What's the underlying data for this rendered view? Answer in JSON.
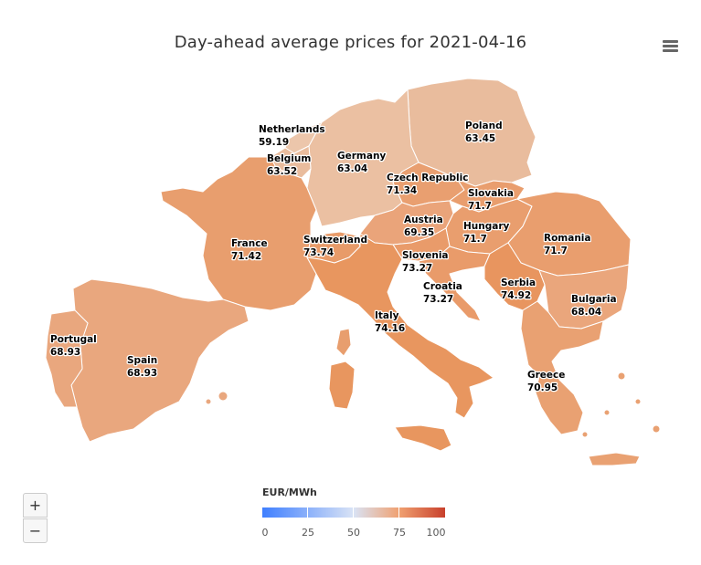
{
  "title": "Day-ahead average prices for 2021-04-16",
  "legend": {
    "title": "EUR/MWh",
    "ticks": [
      "0",
      "25",
      "50",
      "75",
      "100"
    ]
  },
  "colors": {
    "low": "#3f7fff",
    "mid": "#d9e3f5",
    "high": "#c8402c",
    "country_range": [
      "#e8b898",
      "#ea9058"
    ]
  },
  "zoom": {
    "in_label": "+",
    "out_label": "−"
  },
  "menu_icon": "hamburger-icon",
  "countries": [
    {
      "id": "netherlands",
      "name": "Netherlands",
      "price": "59.19"
    },
    {
      "id": "belgium",
      "name": "Belgium",
      "price": "63.52"
    },
    {
      "id": "germany",
      "name": "Germany",
      "price": "63.04"
    },
    {
      "id": "poland",
      "name": "Poland",
      "price": "63.45"
    },
    {
      "id": "czech",
      "name": "Czech Republic",
      "price": "71.34"
    },
    {
      "id": "slovakia",
      "name": "Slovakia",
      "price": "71.7"
    },
    {
      "id": "austria",
      "name": "Austria",
      "price": "69.35"
    },
    {
      "id": "hungary",
      "name": "Hungary",
      "price": "71.7"
    },
    {
      "id": "romania",
      "name": "Romania",
      "price": "71.7"
    },
    {
      "id": "france",
      "name": "France",
      "price": "71.42"
    },
    {
      "id": "switzerland",
      "name": "Switzerland",
      "price": "73.74"
    },
    {
      "id": "slovenia",
      "name": "Slovenia",
      "price": "73.27"
    },
    {
      "id": "croatia",
      "name": "Croatia",
      "price": "73.27"
    },
    {
      "id": "serbia",
      "name": "Serbia",
      "price": "74.92"
    },
    {
      "id": "bulgaria",
      "name": "Bulgaria",
      "price": "68.04"
    },
    {
      "id": "italy",
      "name": "Italy",
      "price": "74.16"
    },
    {
      "id": "portugal",
      "name": "Portugal",
      "price": "68.93"
    },
    {
      "id": "spain",
      "name": "Spain",
      "price": "68.93"
    },
    {
      "id": "greece",
      "name": "Greece",
      "price": "70.95"
    }
  ]
}
